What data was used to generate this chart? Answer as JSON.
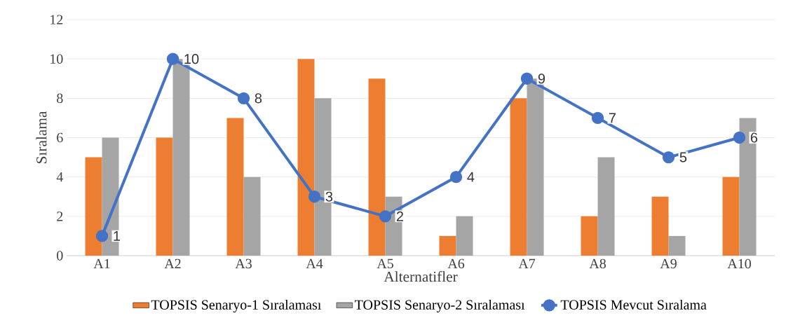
{
  "chart_data": {
    "type": "bar",
    "xlabel": "Alternatifler",
    "ylabel": "Sıralama",
    "categories": [
      "A1",
      "A2",
      "A3",
      "A4",
      "A5",
      "A6",
      "A7",
      "A8",
      "A9",
      "A10"
    ],
    "series": [
      {
        "name": "TOPSIS Senaryo-1 Sıralaması",
        "color": "#ed7d31",
        "values": [
          5,
          6,
          7,
          10,
          9,
          1,
          8,
          2,
          3,
          4
        ]
      },
      {
        "name": "TOPSIS Senaryo-2 Sıralaması",
        "color": "#a5a5a5",
        "values": [
          6,
          10,
          4,
          8,
          3,
          2,
          9,
          5,
          1,
          7
        ]
      },
      {
        "name": "TOPSIS Mevcut Sıralama",
        "type": "line",
        "color": "#4472c4",
        "marker": "circle",
        "values": [
          1,
          10,
          8,
          3,
          2,
          4,
          9,
          7,
          5,
          6
        ],
        "value_labels": [
          "1",
          "10",
          "8",
          "3",
          "2",
          "4",
          "9",
          "7",
          "5",
          "6"
        ]
      }
    ],
    "ylim": [
      0,
      12
    ],
    "yticks": [
      0,
      2,
      4,
      6,
      8,
      10,
      12
    ],
    "grid": "y",
    "legend": "bottom"
  }
}
